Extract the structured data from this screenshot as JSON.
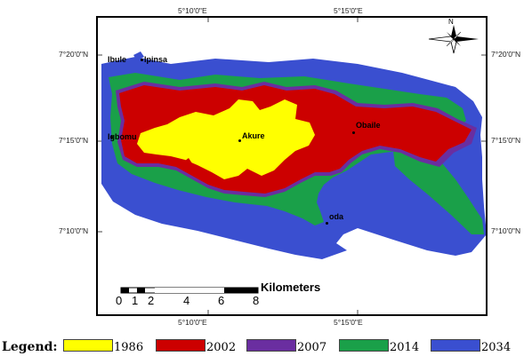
{
  "coordinates": {
    "top_lon": [
      "5°10'0\"E",
      "5°15'0\"E"
    ],
    "bottom_lon": [
      "5°10'0\"E",
      "5°15'0\"E"
    ],
    "left_lat": [
      "7°20'0\"N",
      "7°15'0\"N",
      "7°10'0\"N"
    ],
    "right_lat": [
      "7°20'0\"N",
      "7°15'0\"N",
      "7°10'0\"N"
    ]
  },
  "places": {
    "ibule": "Ibule",
    "ipinsa": "Ipinsa",
    "akure": "Akure",
    "obaile": "Obaile",
    "igbomu": "Igbomu",
    "oda": "oda"
  },
  "north_arrow": {
    "label": "N"
  },
  "scale_bar": {
    "label": "Kilometers",
    "ticks": [
      "0",
      "1",
      "2",
      "4",
      "6",
      "8"
    ]
  },
  "legend": {
    "title": "Legend:",
    "items": [
      {
        "year": "1986",
        "color": "#ffff00"
      },
      {
        "year": "2002",
        "color": "#cc0000"
      },
      {
        "year": "2007",
        "color": "#6a2ea0"
      },
      {
        "year": "2014",
        "color": "#1aa049"
      },
      {
        "year": "2034",
        "color": "#3a4fd0"
      }
    ]
  }
}
